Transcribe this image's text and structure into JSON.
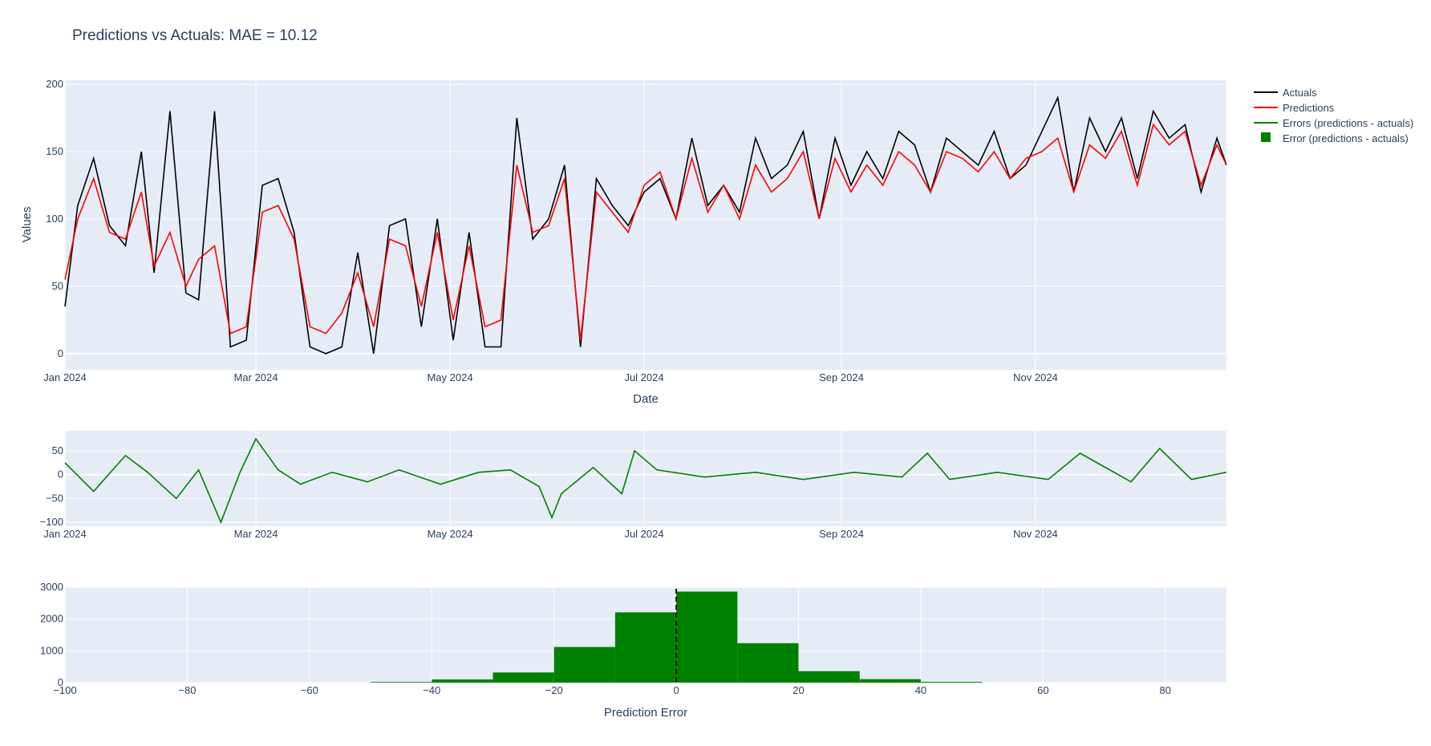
{
  "chart_data": [
    {
      "type": "line",
      "title": "Predictions vs Actuals: MAE = 10.12",
      "xlabel": "Date",
      "ylabel": "Values",
      "x_range": [
        "2024-01-01",
        "2024-12-31"
      ],
      "x_ticks": [
        "Jan 2024",
        "Mar 2024",
        "May 2024",
        "Jul 2024",
        "Sep 2024",
        "Nov 2024"
      ],
      "ylim": [
        -12,
        203
      ],
      "y_ticks": [
        "0",
        "50",
        "100",
        "150",
        "200"
      ],
      "grid": true,
      "legend_position": "top-right outside",
      "series": [
        {
          "name": "Actuals",
          "color": "#000000",
          "x": [
            "2024-01-01",
            "2024-01-05",
            "2024-01-10",
            "2024-01-15",
            "2024-01-20",
            "2024-01-25",
            "2024-01-29",
            "2024-02-03",
            "2024-02-08",
            "2024-02-12",
            "2024-02-17",
            "2024-02-22",
            "2024-02-27",
            "2024-03-03",
            "2024-03-08",
            "2024-03-13",
            "2024-03-18",
            "2024-03-23",
            "2024-03-28",
            "2024-04-02",
            "2024-04-07",
            "2024-04-12",
            "2024-04-17",
            "2024-04-22",
            "2024-04-27",
            "2024-05-02",
            "2024-05-07",
            "2024-05-12",
            "2024-05-17",
            "2024-05-22",
            "2024-05-27",
            "2024-06-01",
            "2024-06-06",
            "2024-06-11",
            "2024-06-16",
            "2024-06-21",
            "2024-06-26",
            "2024-07-01",
            "2024-07-06",
            "2024-07-11",
            "2024-07-16",
            "2024-07-21",
            "2024-07-26",
            "2024-07-31",
            "2024-08-05",
            "2024-08-10",
            "2024-08-15",
            "2024-08-20",
            "2024-08-25",
            "2024-08-30",
            "2024-09-04",
            "2024-09-09",
            "2024-09-14",
            "2024-09-19",
            "2024-09-24",
            "2024-09-29",
            "2024-10-04",
            "2024-10-09",
            "2024-10-14",
            "2024-10-19",
            "2024-10-24",
            "2024-10-29",
            "2024-11-03",
            "2024-11-08",
            "2024-11-13",
            "2024-11-18",
            "2024-11-23",
            "2024-11-28",
            "2024-12-03",
            "2024-12-08",
            "2024-12-13",
            "2024-12-18",
            "2024-12-23",
            "2024-12-28",
            "2024-12-31"
          ],
          "y": [
            35,
            110,
            145,
            95,
            80,
            150,
            60,
            180,
            45,
            40,
            180,
            5,
            10,
            125,
            130,
            90,
            5,
            0,
            5,
            75,
            0,
            95,
            100,
            20,
            100,
            10,
            90,
            5,
            5,
            175,
            85,
            100,
            140,
            5,
            130,
            110,
            95,
            120,
            130,
            100,
            160,
            110,
            125,
            105,
            160,
            130,
            140,
            165,
            100,
            160,
            125,
            150,
            130,
            165,
            155,
            120,
            160,
            150,
            140,
            165,
            130,
            140,
            165,
            190,
            120,
            175,
            150,
            175,
            130,
            180,
            160,
            170,
            120,
            160,
            140
          ]
        },
        {
          "name": "Predictions",
          "color": "#ff0000",
          "x": [
            "2024-01-01",
            "2024-01-05",
            "2024-01-10",
            "2024-01-15",
            "2024-01-20",
            "2024-01-25",
            "2024-01-29",
            "2024-02-03",
            "2024-02-08",
            "2024-02-12",
            "2024-02-17",
            "2024-02-22",
            "2024-02-27",
            "2024-03-03",
            "2024-03-08",
            "2024-03-13",
            "2024-03-18",
            "2024-03-23",
            "2024-03-28",
            "2024-04-02",
            "2024-04-07",
            "2024-04-12",
            "2024-04-17",
            "2024-04-22",
            "2024-04-27",
            "2024-05-02",
            "2024-05-07",
            "2024-05-12",
            "2024-05-17",
            "2024-05-22",
            "2024-05-27",
            "2024-06-01",
            "2024-06-06",
            "2024-06-11",
            "2024-06-16",
            "2024-06-21",
            "2024-06-26",
            "2024-07-01",
            "2024-07-06",
            "2024-07-11",
            "2024-07-16",
            "2024-07-21",
            "2024-07-26",
            "2024-07-31",
            "2024-08-05",
            "2024-08-10",
            "2024-08-15",
            "2024-08-20",
            "2024-08-25",
            "2024-08-30",
            "2024-09-04",
            "2024-09-09",
            "2024-09-14",
            "2024-09-19",
            "2024-09-24",
            "2024-09-29",
            "2024-10-04",
            "2024-10-09",
            "2024-10-14",
            "2024-10-19",
            "2024-10-24",
            "2024-10-29",
            "2024-11-03",
            "2024-11-08",
            "2024-11-13",
            "2024-11-18",
            "2024-11-23",
            "2024-11-28",
            "2024-12-03",
            "2024-12-08",
            "2024-12-13",
            "2024-12-18",
            "2024-12-23",
            "2024-12-28",
            "2024-12-31"
          ],
          "y": [
            55,
            100,
            130,
            90,
            85,
            120,
            65,
            90,
            50,
            70,
            80,
            15,
            20,
            105,
            110,
            85,
            20,
            15,
            30,
            60,
            20,
            85,
            80,
            35,
            90,
            25,
            80,
            20,
            25,
            140,
            90,
            95,
            130,
            10,
            120,
            105,
            90,
            125,
            135,
            100,
            145,
            105,
            125,
            100,
            140,
            120,
            130,
            150,
            100,
            145,
            120,
            140,
            125,
            150,
            140,
            120,
            150,
            145,
            135,
            150,
            130,
            145,
            150,
            160,
            120,
            155,
            145,
            165,
            125,
            170,
            155,
            165,
            125,
            155,
            140
          ]
        }
      ]
    },
    {
      "type": "line",
      "x_range": [
        "2024-01-01",
        "2024-12-31"
      ],
      "x_ticks": [
        "Jan 2024",
        "Mar 2024",
        "May 2024",
        "Jul 2024",
        "Sep 2024",
        "Nov 2024"
      ],
      "ylim": [
        -108,
        92
      ],
      "y_ticks": [
        "50",
        "0",
        "−50",
        "−100"
      ],
      "grid": true,
      "series": [
        {
          "name": "Errors (predictions - actuals)",
          "color": "#008000",
          "x": [
            "2024-01-01",
            "2024-01-10",
            "2024-01-20",
            "2024-01-27",
            "2024-02-05",
            "2024-02-12",
            "2024-02-19",
            "2024-02-25",
            "2024-03-01",
            "2024-03-08",
            "2024-03-15",
            "2024-03-25",
            "2024-04-05",
            "2024-04-15",
            "2024-04-28",
            "2024-05-10",
            "2024-05-20",
            "2024-05-29",
            "2024-06-02",
            "2024-06-05",
            "2024-06-15",
            "2024-06-24",
            "2024-06-28",
            "2024-07-05",
            "2024-07-20",
            "2024-08-05",
            "2024-08-20",
            "2024-09-05",
            "2024-09-20",
            "2024-09-28",
            "2024-10-05",
            "2024-10-20",
            "2024-11-05",
            "2024-11-15",
            "2024-12-01",
            "2024-12-10",
            "2024-12-20",
            "2024-12-31"
          ],
          "y": [
            25,
            -35,
            40,
            5,
            -50,
            10,
            -100,
            5,
            75,
            10,
            -20,
            5,
            -15,
            10,
            -20,
            5,
            10,
            -25,
            -90,
            -40,
            15,
            -40,
            50,
            10,
            -5,
            5,
            -10,
            5,
            -5,
            45,
            -10,
            5,
            -10,
            45,
            -15,
            55,
            -10,
            5
          ]
        }
      ]
    },
    {
      "type": "bar",
      "xlabel": "Prediction Error",
      "x_range": [
        -100,
        90
      ],
      "x_ticks": [
        "−100",
        "−80",
        "−60",
        "−40",
        "−20",
        "0",
        "20",
        "40",
        "60",
        "80"
      ],
      "ylim": [
        0,
        3000
      ],
      "y_ticks": [
        "0",
        "1000",
        "2000",
        "3000"
      ],
      "grid": true,
      "reference_line": {
        "x": 0,
        "style": "dashed",
        "color": "#000000"
      },
      "series": [
        {
          "name": "Error (predictions - actuals)",
          "color": "#008000",
          "bins": [
            [
              -50,
              -40,
              20
            ],
            [
              -40,
              -30,
              100
            ],
            [
              -30,
              -20,
              320
            ],
            [
              -20,
              -10,
              1120
            ],
            [
              -10,
              0,
              2210
            ],
            [
              0,
              10,
              2860
            ],
            [
              10,
              20,
              1240
            ],
            [
              20,
              30,
              360
            ],
            [
              30,
              40,
              110
            ],
            [
              40,
              50,
              25
            ]
          ]
        }
      ]
    }
  ]
}
